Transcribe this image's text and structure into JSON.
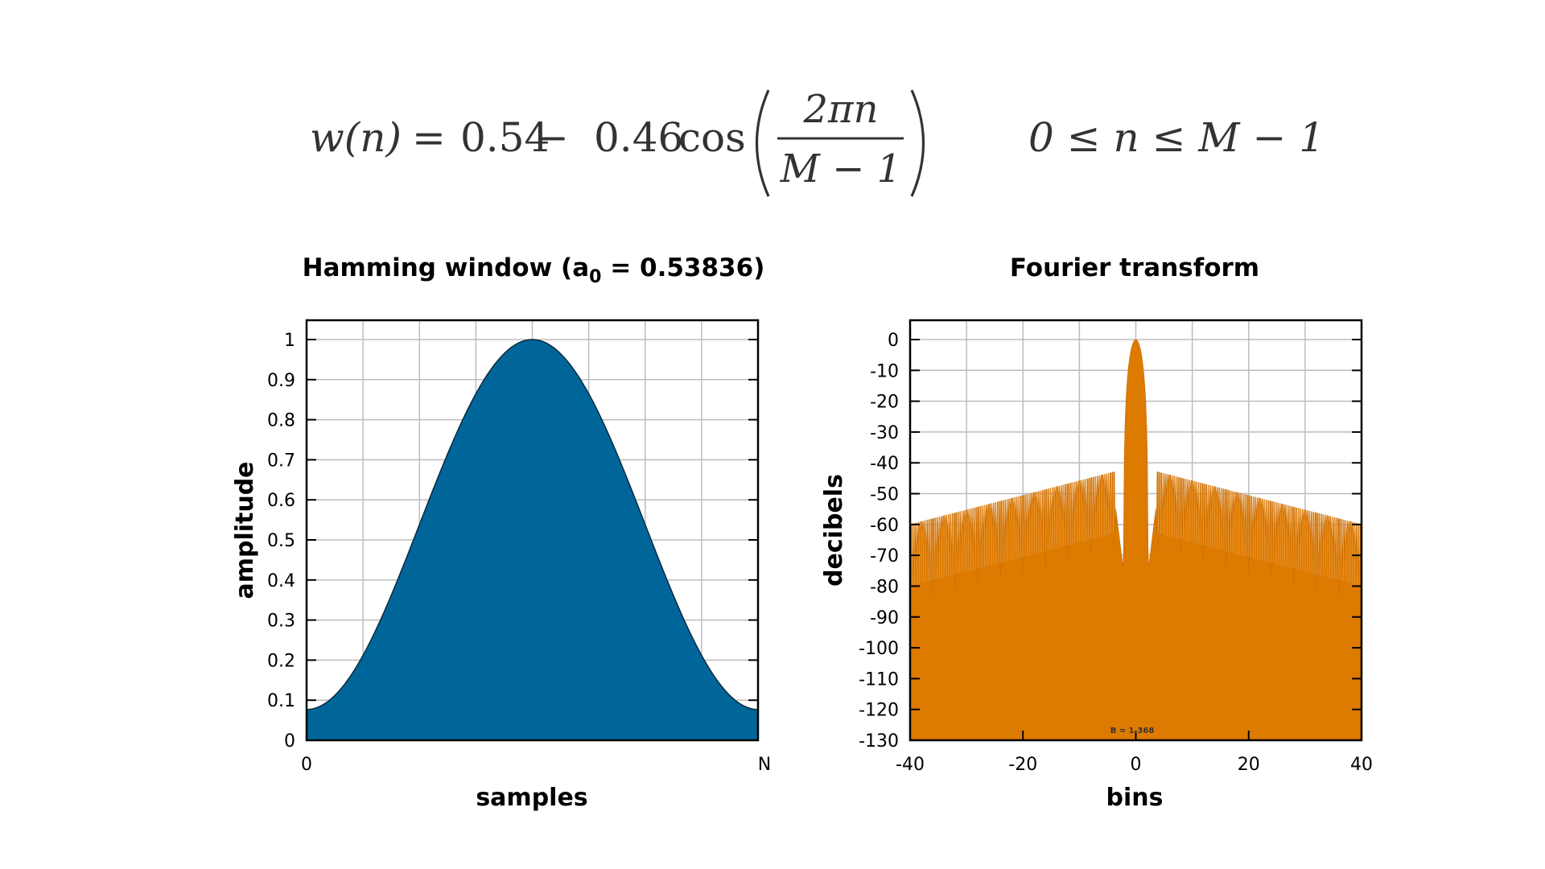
{
  "formula": {
    "lhs": "w(n)",
    "equals": "=",
    "c1": "0.54",
    "minus": "−",
    "c2": "0.46",
    "func": "cos",
    "numerator": "2πn",
    "denominator": "M − 1",
    "range": "0 ≤ n ≤ M − 1"
  },
  "chart_data": [
    {
      "type": "area",
      "title_main": "Hamming window (a",
      "title_sub": "0",
      "title_tail": " = 0.53836)",
      "xlabel": "samples",
      "ylabel": "amplitude",
      "x_tick_labels": [
        "0",
        "N"
      ],
      "y_ticks": [
        0,
        0.1,
        0.2,
        0.3,
        0.4,
        0.5,
        0.6,
        0.7,
        0.8,
        0.9,
        1
      ],
      "y_tick_labels": [
        "0",
        "0.1",
        "0.2",
        "0.3",
        "0.4",
        "0.5",
        "0.6",
        "0.7",
        "0.8",
        "0.9",
        "1"
      ],
      "xlim": [
        0,
        1
      ],
      "ylim": [
        0,
        1
      ],
      "a0": 0.53836,
      "grid": true,
      "color": "#006699"
    },
    {
      "type": "area",
      "title": "Fourier transform",
      "xlabel": "bins",
      "ylabel": "decibels",
      "x_ticks": [
        -40,
        -20,
        0,
        20,
        40
      ],
      "x_tick_labels": [
        "-40",
        "-20",
        "0",
        "20",
        "40"
      ],
      "y_ticks": [
        0,
        -10,
        -20,
        -30,
        -40,
        -50,
        -60,
        -70,
        -80,
        -90,
        -100,
        -110,
        -120,
        -130
      ],
      "y_tick_labels": [
        "0",
        "-10",
        "-20",
        "-30",
        "-40",
        "-50",
        "-60",
        "-70",
        "-80",
        "-90",
        "-100",
        "-110",
        "-120",
        "-130"
      ],
      "xlim": [
        -40,
        40
      ],
      "ylim": [
        -130,
        0
      ],
      "annotation": "B = 1.368",
      "grid": true,
      "color": "#dd7a00"
    }
  ]
}
